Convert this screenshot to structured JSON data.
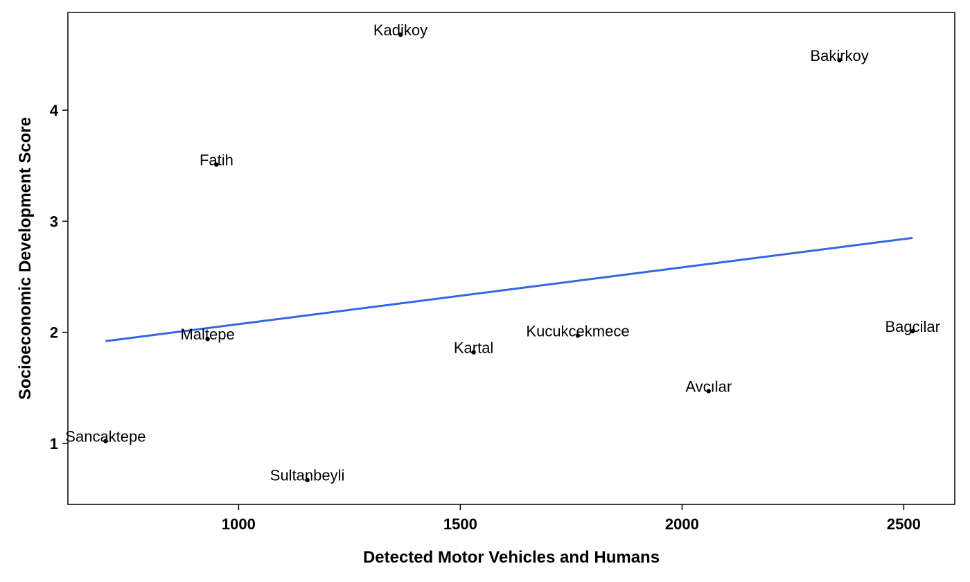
{
  "chart_data": {
    "type": "scatter",
    "title": "",
    "xlabel": "Detected Motor Vehicles and Humans",
    "ylabel": "Socioeconomic Development Score",
    "xlim": [
      615,
      2615
    ],
    "ylim": [
      0.45,
      4.88
    ],
    "xticks": [
      1000,
      1500,
      2000,
      2500
    ],
    "yticks": [
      1,
      2,
      3,
      4
    ],
    "grid": false,
    "legend": "none",
    "colors": {
      "points": "#000000",
      "trend_line": "#3366e0",
      "axes": "#000000"
    },
    "points": [
      {
        "label": "Sancaktepe",
        "x": 700,
        "y": 1.02
      },
      {
        "label": "Maltepe",
        "x": 930,
        "y": 1.94
      },
      {
        "label": "Fatih",
        "x": 950,
        "y": 3.51
      },
      {
        "label": "Sultanbeyli",
        "x": 1155,
        "y": 0.67
      },
      {
        "label": "Kadikoy",
        "x": 1365,
        "y": 4.68
      },
      {
        "label": "Kartal",
        "x": 1530,
        "y": 1.82
      },
      {
        "label": "Kucukcekmece",
        "x": 1765,
        "y": 1.97
      },
      {
        "label": "Avcılar",
        "x": 2060,
        "y": 1.47
      },
      {
        "label": "Bakirkoy",
        "x": 2355,
        "y": 4.45
      },
      {
        "label": "Bagcilar",
        "x": 2520,
        "y": 2.01
      }
    ],
    "trend_line": {
      "x": [
        700,
        2520
      ],
      "y": [
        1.92,
        2.85
      ]
    }
  }
}
